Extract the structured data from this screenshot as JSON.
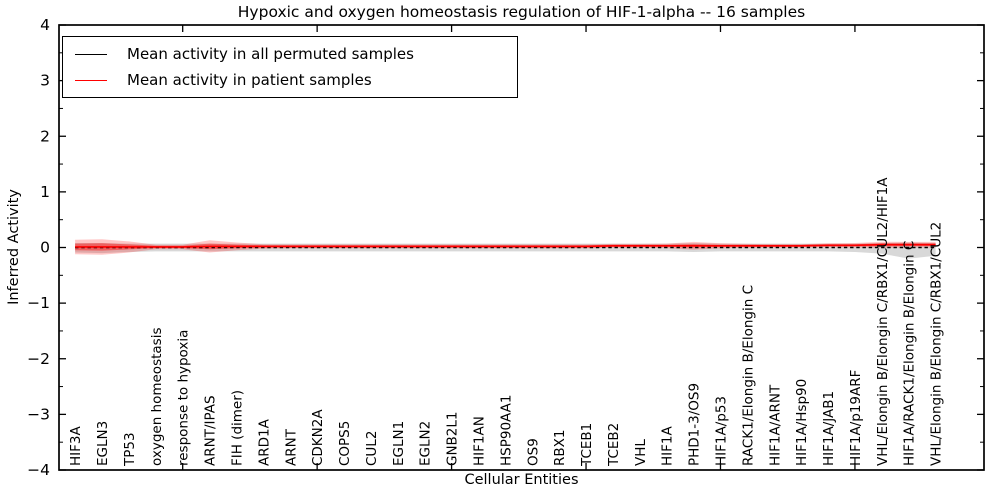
{
  "chart_data": {
    "type": "line",
    "title": "Hypoxic and oxygen homeostasis regulation of HIF-1-alpha -- 16 samples",
    "xlabel": "Cellular Entities",
    "ylabel": "Inferred Activity",
    "xlim": [
      0.4,
      34.8
    ],
    "ylim": [
      -4,
      4
    ],
    "grid": false,
    "ytick_values": [
      -4,
      -3,
      -2,
      -1,
      0,
      1,
      2,
      3,
      4
    ],
    "ytick_labels": [
      "−4",
      "−3",
      "−2",
      "−1",
      "0",
      "1",
      "2",
      "3",
      "4"
    ],
    "ytick_minor_step": 0.5,
    "xtick_major_values": [
      5,
      10,
      15,
      20,
      25,
      30
    ],
    "categories": [
      "HIF3A",
      "EGLN3",
      "TP53",
      "oxygen homeostasis",
      "response to hypoxia",
      "ARNT/IPAS",
      "FIH (dimer)",
      "ARD1A",
      "ARNT",
      "CDKN2A",
      "COPS5",
      "CUL2",
      "EGLN1",
      "EGLN2",
      "GNB2L1",
      "HIF1AN",
      "HSP90AA1",
      "OS9",
      "RBX1",
      "TCEB1",
      "TCEB2",
      "VHL",
      "HIF1A",
      "PHD1-3/OS9",
      "HIF1A/p53",
      "RACK1/Elongin B/Elongin C",
      "HIF1A/ARNT",
      "HIF1A/Hsp90",
      "HIF1A/JAB1",
      "HIF1A/p19ARF",
      "VHL/Elongin B/Elongin C/RBX1/CUL2/HIF1A",
      "HIF1A/RACK1/Elongin B/Elongin C",
      "VHL/Elongin B/Elongin C/RBX1/CUL2"
    ],
    "legend": {
      "position": "upper left",
      "entries": [
        {
          "label": "Mean activity in all permuted samples",
          "color": "#000000"
        },
        {
          "label": "Mean activity in patient samples",
          "color": "#ff0000"
        }
      ]
    },
    "series": [
      {
        "id": "permuted-mean-line",
        "name": "Mean activity in all permuted samples",
        "color": "#000000",
        "style": "dashed",
        "values": [
          0,
          0,
          0,
          0,
          0,
          0,
          0,
          0,
          0,
          0,
          0,
          0,
          0,
          0,
          0,
          0,
          0,
          0,
          0,
          0,
          0,
          0,
          0,
          0,
          0,
          0,
          0,
          0,
          0,
          0,
          0,
          0,
          0
        ]
      },
      {
        "id": "patient-mean-line",
        "name": "Mean activity in patient samples",
        "color": "#ff0000",
        "style": "solid",
        "values": [
          0.01,
          0.01,
          0.01,
          0.01,
          0.01,
          0.02,
          0.02,
          0.02,
          0.02,
          0.02,
          0.02,
          0.02,
          0.02,
          0.02,
          0.02,
          0.02,
          0.02,
          0.02,
          0.02,
          0.02,
          0.03,
          0.03,
          0.03,
          0.03,
          0.03,
          0.03,
          0.03,
          0.03,
          0.04,
          0.04,
          0.05,
          0.05,
          0.05
        ]
      }
    ],
    "bands": [
      {
        "name": "permuted-std-band",
        "color": "#999999",
        "opacity": 0.38,
        "upper": [
          0.08,
          0.08,
          0.07,
          0.07,
          0.07,
          0.07,
          0.07,
          0.07,
          0.07,
          0.07,
          0.07,
          0.07,
          0.07,
          0.07,
          0.07,
          0.07,
          0.07,
          0.07,
          0.07,
          0.07,
          0.07,
          0.07,
          0.07,
          0.08,
          0.07,
          0.07,
          0.07,
          0.07,
          0.07,
          0.07,
          0.08,
          0.09,
          0.08
        ],
        "lower": [
          -0.09,
          -0.1,
          -0.08,
          -0.07,
          -0.07,
          -0.07,
          -0.07,
          -0.07,
          -0.07,
          -0.07,
          -0.07,
          -0.07,
          -0.07,
          -0.07,
          -0.07,
          -0.07,
          -0.07,
          -0.07,
          -0.07,
          -0.07,
          -0.07,
          -0.07,
          -0.07,
          -0.08,
          -0.07,
          -0.07,
          -0.07,
          -0.07,
          -0.07,
          -0.08,
          -0.11,
          -0.2,
          -0.15
        ]
      },
      {
        "name": "patient-std-band-outer",
        "color": "#ff0000",
        "opacity": 0.22,
        "upper": [
          0.14,
          0.15,
          0.11,
          0.05,
          0.05,
          0.13,
          0.09,
          0.06,
          0.055,
          0.055,
          0.055,
          0.055,
          0.055,
          0.055,
          0.055,
          0.055,
          0.055,
          0.055,
          0.055,
          0.055,
          0.065,
          0.065,
          0.07,
          0.1,
          0.075,
          0.065,
          0.06,
          0.06,
          0.075,
          0.08,
          0.105,
          0.1,
          0.1
        ],
        "lower": [
          -0.12,
          -0.13,
          -0.09,
          -0.03,
          -0.03,
          -0.09,
          -0.05,
          -0.02,
          -0.015,
          -0.015,
          -0.015,
          -0.015,
          -0.015,
          -0.015,
          -0.015,
          -0.015,
          -0.015,
          -0.015,
          -0.015,
          -0.015,
          -0.005,
          -0.005,
          -0.01,
          -0.04,
          -0.015,
          -0.005,
          0,
          0,
          0.005,
          0,
          -0.005,
          0,
          0
        ]
      },
      {
        "name": "patient-std-band-inner",
        "color": "#ff0000",
        "opacity": 0.42,
        "upper": [
          0.07,
          0.075,
          0.055,
          0.03,
          0.03,
          0.07,
          0.052,
          0.04,
          0.04,
          0.04,
          0.04,
          0.04,
          0.04,
          0.04,
          0.04,
          0.04,
          0.04,
          0.04,
          0.04,
          0.04,
          0.05,
          0.05,
          0.05,
          0.062,
          0.05,
          0.05,
          0.05,
          0.05,
          0.06,
          0.06,
          0.075,
          0.073,
          0.073
        ],
        "lower": [
          -0.05,
          -0.055,
          -0.035,
          -0.01,
          -0.01,
          -0.03,
          -0.012,
          0,
          0,
          0,
          0,
          0,
          0,
          0,
          0,
          0,
          0,
          0,
          0,
          0,
          0.01,
          0.01,
          0.01,
          -0.002,
          0.01,
          0.01,
          0.01,
          0.01,
          0.02,
          0.02,
          0.025,
          0.027,
          0.027
        ]
      }
    ],
    "colors": {
      "axis": "#000000",
      "patient": "#ff0000",
      "permuted": "#000000",
      "background": "#ffffff"
    }
  }
}
